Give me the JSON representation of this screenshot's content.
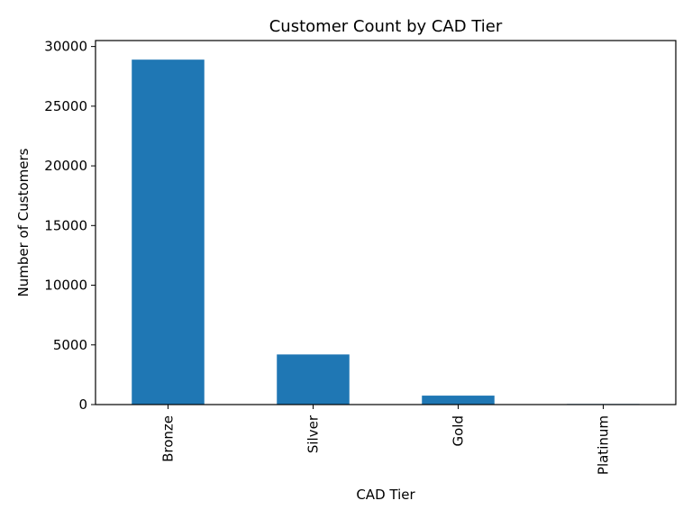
{
  "chart_data": {
    "type": "bar",
    "title": "Customer Count by CAD Tier",
    "xlabel": "CAD Tier",
    "ylabel": "Number of Customers",
    "categories": [
      "Bronze",
      "Silver",
      "Gold",
      "Platinum"
    ],
    "values": [
      28900,
      4200,
      750,
      50
    ],
    "ylim": [
      0,
      30500
    ],
    "yticks": [
      0,
      5000,
      10000,
      15000,
      20000,
      25000,
      30000
    ],
    "ytick_labels": [
      "0",
      "5000",
      "10000",
      "15000",
      "20000",
      "25000",
      "30000"
    ],
    "bar_color": "#1f77b4",
    "grid": false,
    "legend": "none"
  }
}
